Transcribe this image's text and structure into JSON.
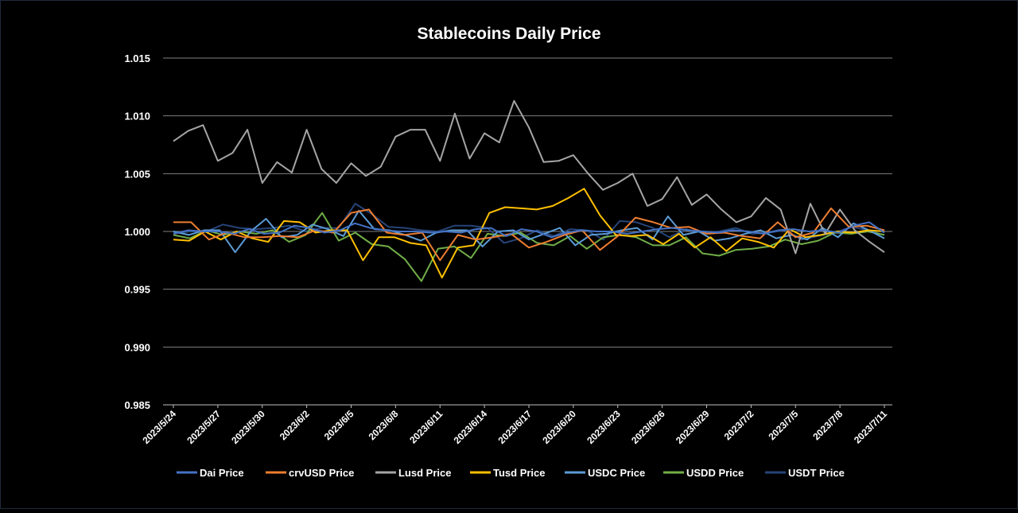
{
  "chart_data": {
    "type": "line",
    "title": "Stablecoins Daily Price",
    "xlabel": "",
    "ylabel": "",
    "ylim": [
      0.985,
      1.015
    ],
    "y_ticks": [
      "0.985",
      "0.990",
      "0.995",
      "1.000",
      "1.005",
      "1.010",
      "1.015"
    ],
    "x_tick_labels": [
      "2023/5/24",
      "2023/5/27",
      "2023/5/30",
      "2023/6/2",
      "2023/6/5",
      "2023/6/8",
      "2023/6/11",
      "2023/6/14",
      "2023/6/17",
      "2023/6/20",
      "2023/6/23",
      "2023/6/26",
      "2023/6/29",
      "2023/7/2",
      "2023/7/5",
      "2023/7/8",
      "2023/7/11"
    ],
    "x_tick_every_days": 3,
    "grid": "horizontal",
    "legend_position": "bottom",
    "background": "#000000",
    "series": [
      {
        "name": "Dai Price",
        "color": "#4472c4",
        "values": [
          0.9998,
          1.0001,
          1.0,
          1.0,
          0.9998,
          1.0002,
          0.9998,
          0.9999,
          1.0005,
          1.0003,
          0.9999,
          1.0001,
          1.0007,
          1.0003,
          1.0001,
          1.0,
          1.0,
          0.9999,
          1.0,
          0.9999,
          1.0002,
          1.0003,
          0.9996,
          1.0002,
          1.0,
          0.9995,
          0.9999,
          1.0001,
          1.0,
          1.0,
          0.9998,
          1.0,
          1.0002,
          1.0003,
          1.0001,
          1.0,
          0.9999,
          1.0001,
          1.0,
          0.9998,
          1.0001,
          1.0002,
          1.0,
          1.0001,
          0.9999,
          1.0005,
          1.0008,
          0.9999
        ]
      },
      {
        "name": "crvUSD Price",
        "color": "#ed7d31",
        "values": [
          1.0008,
          1.0008,
          0.9993,
          0.9999,
          0.9995,
          0.9995,
          0.9996,
          0.9995,
          1.0001,
          0.9999,
          1.0016,
          1.0019,
          0.9999,
          0.9997,
          0.9999,
          0.9975,
          0.9997,
          0.9993,
          0.9995,
          0.9998,
          0.9986,
          0.9991,
          0.9997,
          1.0001,
          0.9984,
          0.9996,
          1.0012,
          1.0008,
          1.0003,
          1.0004,
          0.9998,
          0.9999,
          0.9996,
          0.9994,
          1.0008,
          0.9995,
          0.9999,
          1.002,
          1.0004,
          1.0005,
          1.0001
        ]
      },
      {
        "name": "Lusd Price",
        "color": "#a5a5a5",
        "values": [
          1.0078,
          1.0087,
          1.0092,
          1.0061,
          1.0068,
          1.0088,
          1.0042,
          1.006,
          1.0051,
          1.0088,
          1.0054,
          1.0042,
          1.0059,
          1.0048,
          1.0056,
          1.0082,
          1.0088,
          1.0088,
          1.0061,
          1.0102,
          1.0063,
          1.0085,
          1.0077,
          1.0113,
          1.009,
          1.006,
          1.0061,
          1.0066,
          1.005,
          1.0036,
          1.0042,
          1.005,
          1.0022,
          1.0028,
          1.0047,
          1.0023,
          1.0032,
          1.0019,
          1.0008,
          1.0013,
          1.0029,
          1.0019,
          0.9981,
          1.0024,
          0.9998,
          1.0019,
          1.0001,
          0.9991,
          0.9982
        ]
      },
      {
        "name": "Tusd Price",
        "color": "#ffc000",
        "values": [
          0.9993,
          0.9992,
          1.0,
          0.9993,
          1.0,
          0.9994,
          0.9991,
          1.0009,
          1.0008,
          0.9999,
          1.0001,
          1.0001,
          0.9975,
          0.9995,
          0.9995,
          0.999,
          0.9988,
          0.996,
          0.9986,
          0.9988,
          1.0016,
          1.0021,
          1.002,
          1.0019,
          1.0022,
          1.0029,
          1.0037,
          1.0014,
          0.9997,
          0.9996,
          0.9997,
          0.9989,
          0.9998,
          0.9986,
          0.9995,
          0.9983,
          0.9994,
          0.9991,
          0.9986,
          1.0002,
          0.9995,
          0.9997,
          1.0,
          0.9999,
          1.0001,
          1.0
        ]
      },
      {
        "name": "USDC Price",
        "color": "#5b9bd5",
        "values": [
          1.0,
          0.9997,
          1.0001,
          1.0001,
          0.9982,
          1.0,
          1.0011,
          0.9995,
          0.9997,
          1.0006,
          1.0002,
          0.9996,
          1.0018,
          1.0002,
          1.0001,
          0.9997,
          0.9992,
          0.9999,
          1.0001,
          1.0001,
          0.9987,
          1.0,
          1.0001,
          0.9993,
          0.9998,
          1.0003,
          0.9988,
          0.9997,
          0.9998,
          1.0001,
          1.0003,
          0.9993,
          1.0013,
          0.9997,
          1.0,
          0.9992,
          0.9994,
          0.9998,
          1.0001,
          0.9994,
          0.9997,
          0.9993,
          1.0003,
          0.9995,
          1.0007,
          1.0001,
          0.9994
        ]
      },
      {
        "name": "USDD Price",
        "color": "#70ad47",
        "values": [
          0.9997,
          0.9994,
          1.0001,
          0.9997,
          1.0,
          0.9998,
          1.0001,
          0.9991,
          0.9997,
          1.0016,
          0.9992,
          0.9999,
          0.9989,
          0.9987,
          0.9976,
          0.9957,
          0.9985,
          0.9987,
          0.9977,
          0.9998,
          0.9996,
          0.9999,
          0.999,
          0.9988,
          0.9996,
          0.9985,
          0.9995,
          0.9997,
          0.9995,
          0.9988,
          0.9988,
          0.9995,
          0.9981,
          0.9979,
          0.9984,
          0.9985,
          0.9987,
          0.9993,
          0.9989,
          0.9992,
          0.9999,
          0.9998,
          1.0,
          0.9997
        ]
      },
      {
        "name": "USDT Price",
        "color": "#264478",
        "values": [
          0.9998,
          1.0,
          1.0,
          1.0006,
          1.0003,
          1.0002,
          1.0003,
          1.0005,
          1.0,
          1.0003,
          1.0003,
          1.0024,
          1.0015,
          1.0004,
          1.0003,
          1.0001,
          1.0,
          1.0005,
          1.0005,
          1.0003,
          0.999,
          0.9994,
          1.0001,
          0.9996,
          1.0002,
          1.0001,
          0.9993,
          1.0009,
          1.0008,
          1.0003,
          0.9995,
          1.0002,
          0.9999,
          1.0,
          1.0003,
          0.9998,
          0.9999,
          1.0001,
          0.9993,
          0.9996,
          0.9999,
          1.0004,
          1.0001,
          0.9997
        ]
      }
    ]
  }
}
